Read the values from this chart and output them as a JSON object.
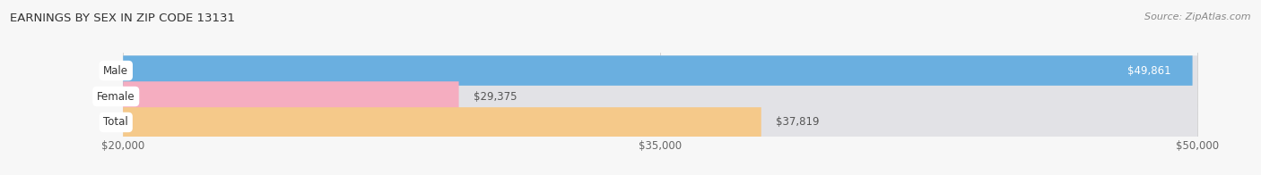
{
  "title": "EARNINGS BY SEX IN ZIP CODE 13131",
  "source": "Source: ZipAtlas.com",
  "categories": [
    "Male",
    "Female",
    "Total"
  ],
  "values": [
    49861,
    29375,
    37819
  ],
  "bar_colors": [
    "#6aafe0",
    "#f5adc0",
    "#f5c98a"
  ],
  "bar_bg_color": "#e2e2e6",
  "value_labels": [
    "$49,861",
    "$29,375",
    "$37,819"
  ],
  "xmin": 20000,
  "xmax": 50000,
  "xticks": [
    20000,
    35000,
    50000
  ],
  "xtick_labels": [
    "$20,000",
    "$35,000",
    "$50,000"
  ],
  "background_color": "#f7f7f7",
  "title_fontsize": 9.5,
  "label_fontsize": 8.5,
  "value_fontsize": 8.5,
  "source_fontsize": 8
}
